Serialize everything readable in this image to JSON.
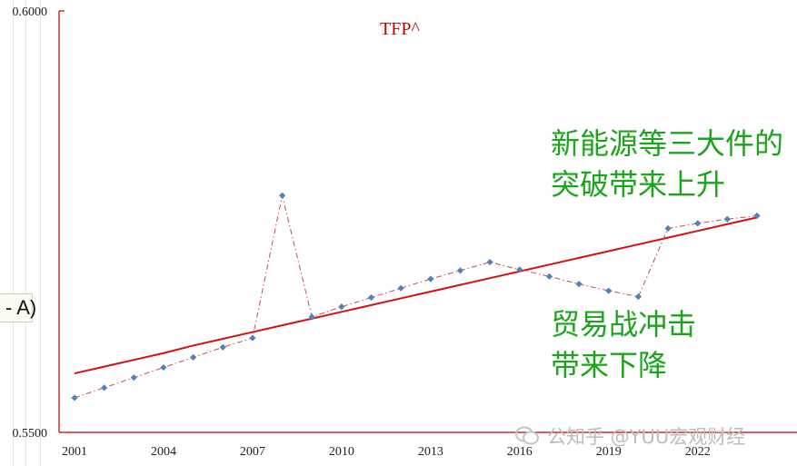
{
  "chart_data": {
    "type": "line",
    "title": "TFP^",
    "x": [
      2001,
      2002,
      2003,
      2004,
      2005,
      2006,
      2007,
      2008,
      2009,
      2010,
      2011,
      2012,
      2013,
      2014,
      2015,
      2016,
      2017,
      2018,
      2019,
      2020,
      2021,
      2022,
      2023,
      2024
    ],
    "x_ticks": [
      "2001",
      "2004",
      "2007",
      "2010",
      "2013",
      "2016",
      "2019",
      "2022"
    ],
    "y_ticks": [
      "0.6000",
      "0.5500"
    ],
    "ylim": [
      0.55,
      0.6
    ],
    "series": [
      {
        "values": [
          0.5541,
          0.5553,
          0.5565,
          0.5577,
          0.5589,
          0.5601,
          0.5612,
          0.5781,
          0.5637,
          0.5649,
          0.566,
          0.5671,
          0.5682,
          0.5692,
          0.5702,
          0.5693,
          0.5685,
          0.5676,
          0.5668,
          0.5661,
          0.5742,
          0.5748,
          0.5753,
          0.5757
        ],
        "style": "dash-dot",
        "color": "#c0504d",
        "marker_color": "#4f81bd"
      },
      {
        "values": [
          0.557,
          0.5578,
          0.5586,
          0.5594,
          0.5603,
          0.5611,
          0.5619,
          0.5627,
          0.5635,
          0.5643,
          0.5651,
          0.5659,
          0.5667,
          0.5675,
          0.5683,
          0.5691,
          0.5699,
          0.5707,
          0.5715,
          0.5723,
          0.5731,
          0.5739,
          0.5747,
          0.5755
        ],
        "style": "solid",
        "color": "#d41111"
      }
    ],
    "grid": false,
    "legend": "none"
  },
  "annotations": {
    "upper": [
      "新能源等三大件的",
      "突破带来上升"
    ],
    "lower": [
      "贸易战冲击",
      "带来下降"
    ]
  },
  "left_clip_text": "- A)",
  "watermark": "公知乎 @YUU宏观财经",
  "colors": {
    "axis": "#c00000",
    "annotation": "#1aa51a",
    "title": "#c00000"
  }
}
